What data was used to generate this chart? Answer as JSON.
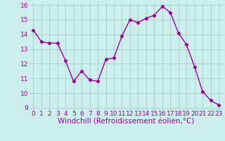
{
  "x": [
    0,
    1,
    2,
    3,
    4,
    5,
    6,
    7,
    8,
    9,
    10,
    11,
    12,
    13,
    14,
    15,
    16,
    17,
    18,
    19,
    20,
    21,
    22,
    23
  ],
  "y": [
    14.3,
    13.5,
    13.4,
    13.4,
    12.2,
    10.8,
    11.5,
    10.9,
    10.8,
    12.3,
    12.4,
    13.9,
    15.0,
    14.8,
    15.1,
    15.3,
    15.9,
    15.5,
    14.1,
    13.3,
    11.8,
    10.1,
    9.5,
    9.2
  ],
  "line_color": "#990099",
  "marker": "D",
  "marker_size": 2.2,
  "bg_color": "#cceeed",
  "grid_color": "#aacccc",
  "xlabel": "Windchill (Refroidissement éolien,°C)",
  "xlabel_color": "#990099",
  "tick_color": "#990099",
  "ylim": [
    9,
    16
  ],
  "xlim": [
    -0.5,
    23.5
  ],
  "yticks": [
    9,
    10,
    11,
    12,
    13,
    14,
    15,
    16
  ],
  "xticks": [
    0,
    1,
    2,
    3,
    4,
    5,
    6,
    7,
    8,
    9,
    10,
    11,
    12,
    13,
    14,
    15,
    16,
    17,
    18,
    19,
    20,
    21,
    22,
    23
  ],
  "tick_fontsize": 6.5,
  "xlabel_fontsize": 7.5,
  "line_width": 1.0
}
